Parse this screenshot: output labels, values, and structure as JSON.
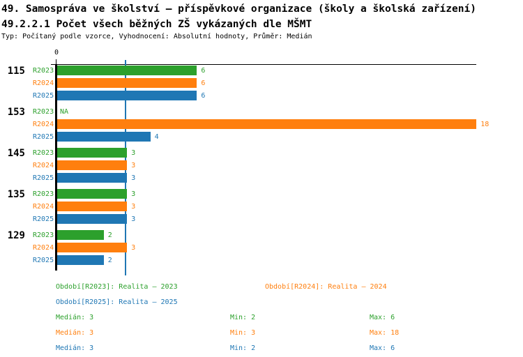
{
  "page": {
    "title": "49. Samospráva ve školství – příspěvkové organizace (školy a školská zařízení)",
    "subtitle": "49.2.2.1 Počet všech běžných ZŠ vykázaných dle MŠMT",
    "meta_line": "Typ: Počítaný podle vzorce, Vyhodnocení: Absolutní hodnoty, Průměr: Medián"
  },
  "colors": {
    "r2023_green": "#2ca02c",
    "r2024_orange": "#ff7f0e",
    "r2025_blue": "#1f77b4",
    "axis_black": "#000000",
    "background": "#ffffff"
  },
  "chart_data": {
    "type": "bar",
    "orientation": "horizontal",
    "title": "49.2.2.1 Počet všech běžných ZŠ vykázaných dle MŠMT",
    "x_axis": {
      "min": 0,
      "max": 18,
      "tick_values": [
        0
      ],
      "tick_labels": [
        "0"
      ]
    },
    "na_label": "NA",
    "reference_line": {
      "value": 3,
      "meaning": "median",
      "color": "#1f77b4"
    },
    "series": [
      {
        "name": "R2023",
        "color": "#2ca02c"
      },
      {
        "name": "R2024",
        "color": "#ff7f0e"
      },
      {
        "name": "R2025",
        "color": "#1f77b4"
      }
    ],
    "groups": [
      {
        "label": "115",
        "values": [
          6,
          6,
          6
        ]
      },
      {
        "label": "153",
        "values": [
          null,
          18,
          4
        ]
      },
      {
        "label": "145",
        "values": [
          3,
          3,
          3
        ]
      },
      {
        "label": "135",
        "values": [
          3,
          3,
          3
        ]
      },
      {
        "label": "129",
        "values": [
          2,
          3,
          2
        ]
      }
    ]
  },
  "legend": [
    {
      "label": "Období[R2023]: Realita – 2023",
      "series": "R2023",
      "color": "#2ca02c",
      "row": 0,
      "col": 0
    },
    {
      "label": "Období[R2024]: Realita – 2024",
      "series": "R2024",
      "color": "#ff7f0e",
      "row": 0,
      "col": 1
    },
    {
      "label": "Období[R2025]: Realita – 2025",
      "series": "R2025",
      "color": "#1f77b4",
      "row": 1,
      "col": 0
    }
  ],
  "stats": [
    {
      "series": "R2023",
      "color": "#2ca02c",
      "median_label": "Medián",
      "median": "3",
      "min_label": "Min",
      "min": "2",
      "max_label": "Max",
      "max": "6"
    },
    {
      "series": "R2024",
      "color": "#ff7f0e",
      "median_label": "Medián",
      "median": "3",
      "min_label": "Min",
      "min": "3",
      "max_label": "Max",
      "max": "18"
    },
    {
      "series": "R2025",
      "color": "#1f77b4",
      "median_label": "Medián",
      "median": "3",
      "min_label": "Min",
      "min": "2",
      "max_label": "Max",
      "max": "6"
    }
  ]
}
